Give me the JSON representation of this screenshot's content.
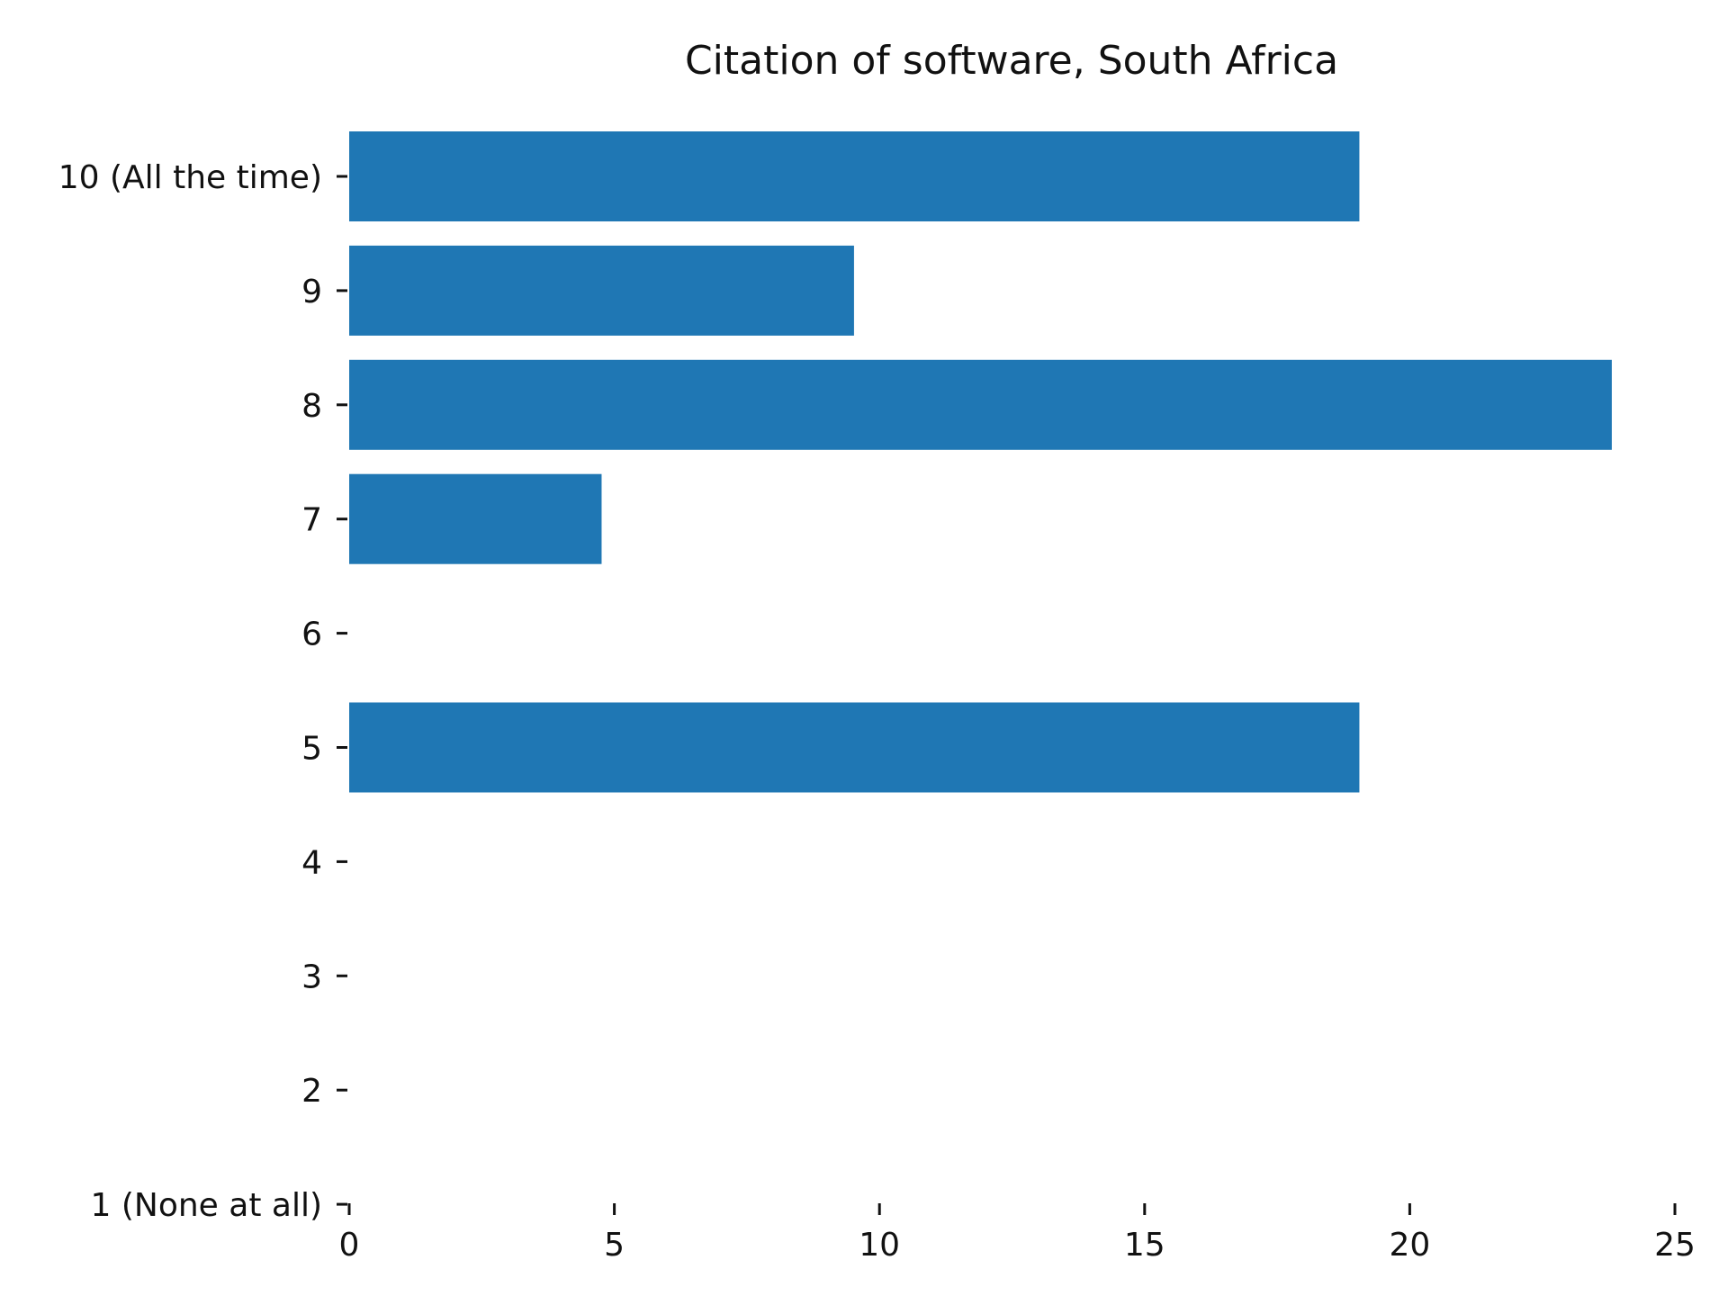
{
  "chart_data": {
    "type": "bar",
    "orientation": "horizontal",
    "title": "Citation of software, South Africa",
    "xlabel": "",
    "ylabel": "",
    "categories": [
      "1 (None at all)",
      "2",
      "3",
      "4",
      "5",
      "6",
      "7",
      "8",
      "9",
      "10 (All the time)"
    ],
    "values": [
      0,
      0,
      0,
      0,
      19.05,
      0,
      4.76,
      23.81,
      9.52,
      19.05
    ],
    "xlim": [
      0,
      25
    ],
    "xticks": [
      "0",
      "5",
      "10",
      "15",
      "20",
      "25"
    ],
    "grid": false,
    "legend": "none",
    "colors": {
      "bar": "#1f77b4",
      "text": "#111111",
      "background": "#ffffff"
    }
  }
}
